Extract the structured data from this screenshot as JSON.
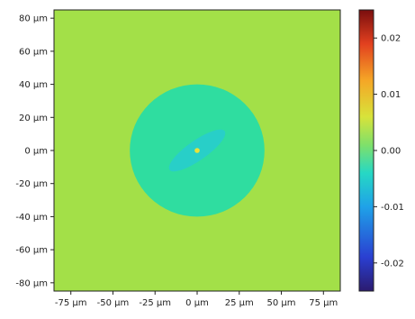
{
  "chart_data": {
    "type": "heatmap",
    "title": "",
    "xlabel": "",
    "ylabel": "",
    "xlim": [
      -85,
      85
    ],
    "ylim": [
      -85,
      85
    ],
    "x_ticks": [
      -75,
      -50,
      -25,
      0,
      25,
      50,
      75
    ],
    "x_tick_labels": [
      "-75 µm",
      "-50 µm",
      "-25 µm",
      "0 µm",
      "25 µm",
      "50 µm",
      "75 µm"
    ],
    "y_ticks": [
      80,
      60,
      40,
      20,
      0,
      -20,
      -40,
      -60,
      -80
    ],
    "y_tick_labels": [
      "80 µm",
      "60 µm",
      "40 µm",
      "20 µm",
      "0 µm",
      "-20 µm",
      "-40 µm",
      "-60 µm",
      "-80 µm"
    ],
    "colorbar": {
      "colormap": "jet",
      "range": [
        -0.025,
        0.025
      ],
      "ticks": [
        0.02,
        0.01,
        0.0,
        -0.01,
        -0.02
      ],
      "tick_labels": [
        "0.02",
        "0.01",
        "0.00",
        "-0.01",
        "-0.02"
      ]
    },
    "regions": [
      {
        "shape": "background",
        "value": 0.0,
        "color": "#a3e048"
      },
      {
        "shape": "circle",
        "center": [
          0,
          0
        ],
        "radius": 40,
        "value": -0.008,
        "color": "#2fdda0"
      },
      {
        "shape": "ellipse",
        "center": [
          0,
          0
        ],
        "rx": 20,
        "ry": 6,
        "angle_deg": 35,
        "value": -0.011,
        "color": "#28cfc8"
      },
      {
        "shape": "dot",
        "center": [
          0,
          0
        ],
        "radius": 1.5,
        "value": 0.003,
        "color": "#e8e23a"
      }
    ],
    "grid": false
  }
}
